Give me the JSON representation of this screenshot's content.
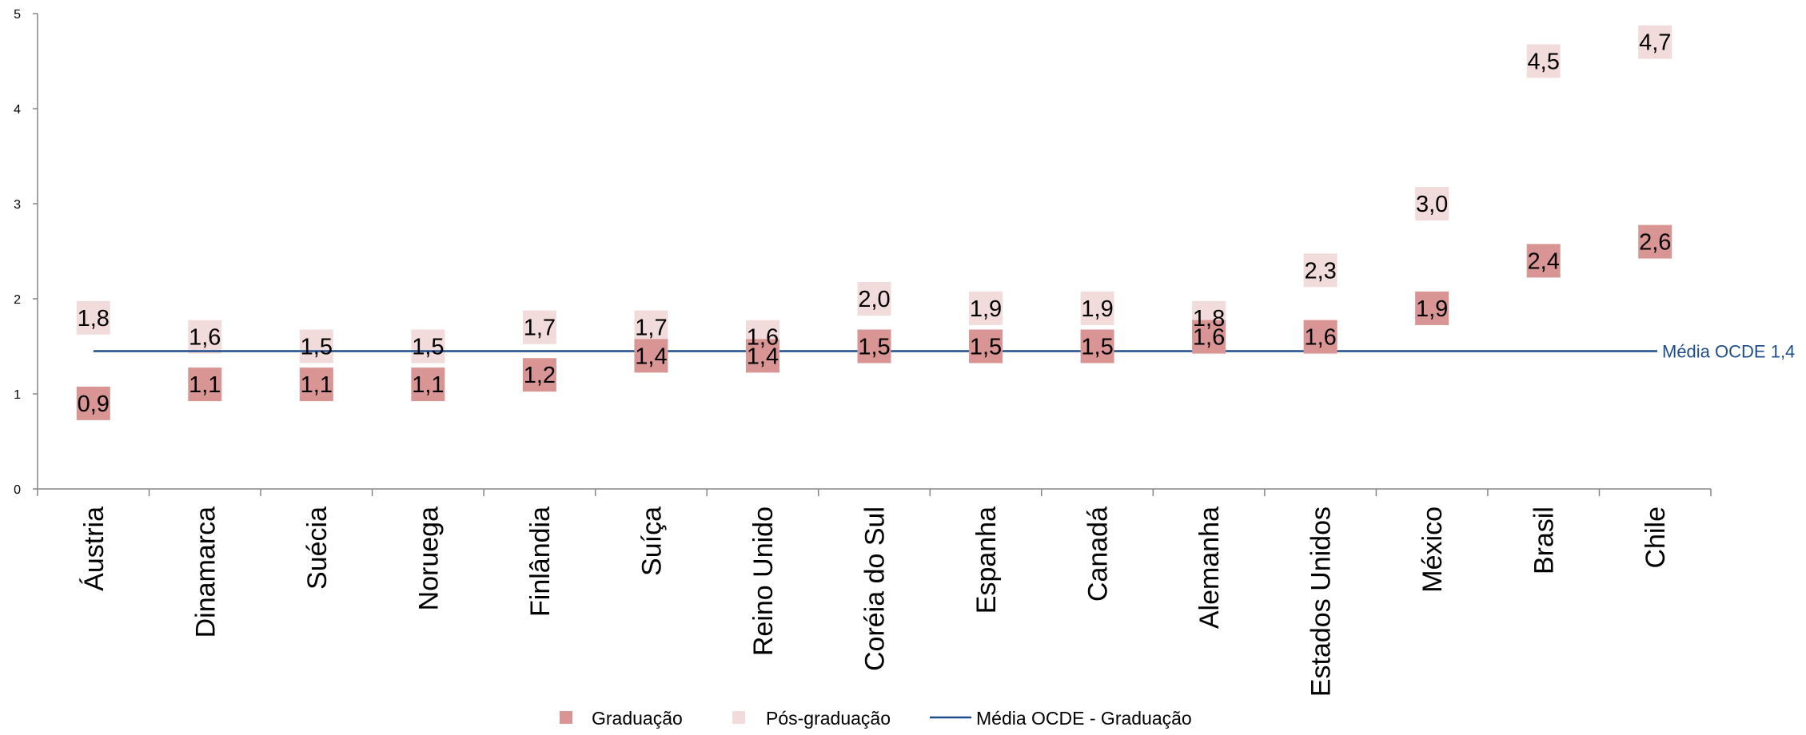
{
  "chart_data": {
    "type": "scatter",
    "categories": [
      "Áustria",
      "Dinamarca",
      "Suécia",
      "Noruega",
      "Finlândia",
      "Suíça",
      "Reino Unido",
      "Coréia do Sul",
      "Espanha",
      "Canadá",
      "Alemanha",
      "Estados Unidos",
      "México",
      "Brasil",
      "Chile"
    ],
    "series": [
      {
        "name": "Graduação",
        "color": "#d99594",
        "marker": "square",
        "values": [
          0.9,
          1.1,
          1.1,
          1.1,
          1.2,
          1.4,
          1.4,
          1.5,
          1.5,
          1.5,
          1.6,
          1.6,
          1.9,
          2.4,
          2.6
        ],
        "labels": [
          "0,9",
          "1,1",
          "1,1",
          "1,1",
          "1,2",
          "1,4",
          "1,4",
          "1,5",
          "1,5",
          "1,5",
          "1,6",
          "1,6",
          "1,9",
          "2,4",
          "2,6"
        ]
      },
      {
        "name": "Pós-graduação",
        "color": "#f2dcdb",
        "marker": "square",
        "values": [
          1.8,
          1.6,
          1.5,
          1.5,
          1.7,
          1.7,
          1.6,
          2.0,
          1.9,
          1.9,
          1.8,
          2.3,
          3.0,
          4.5,
          4.7
        ],
        "labels": [
          "1,8",
          "1,6",
          "1,5",
          "1,5",
          "1,7",
          "1,7",
          "1,6",
          "2,0",
          "1,9",
          "1,9",
          "1,8",
          "2,3",
          "3,0",
          "4,5",
          "4,7"
        ]
      },
      {
        "name": "Média OCDE - Graduação",
        "type": "line",
        "color": "#1f4e8c",
        "value": 1.45,
        "label": "Média OCDE 1,4"
      }
    ],
    "yticks": [
      "0",
      "1",
      "2",
      "3",
      "4",
      "5"
    ],
    "ylim": [
      0,
      5
    ],
    "grid": false,
    "legend_position": "bottom"
  }
}
